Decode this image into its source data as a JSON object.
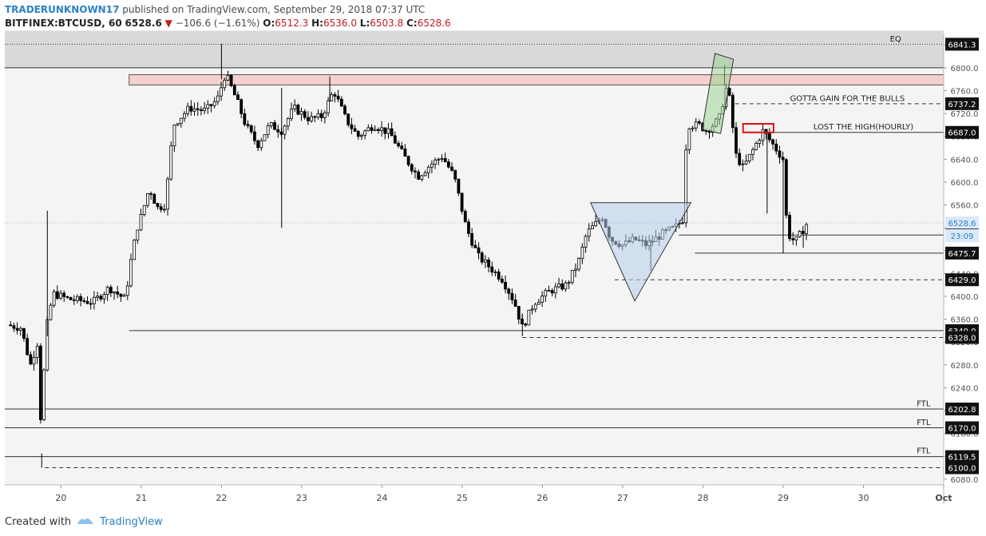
{
  "header": {
    "author": "TRADERUNKNOWN17",
    "published": "published on TradingView.com, September 29, 2018 07:37 UTC",
    "symbol": "BITFINEX:BTCUSD, 60",
    "last": "6528.6",
    "change": "−106.6 (−1.61%)",
    "o_label": "O:",
    "o_value": "6512.3",
    "h_label": "H:",
    "h_value": "6536.0",
    "l_label": "L:",
    "l_value": "6503.8",
    "c_label": "C:",
    "c_value": "6528.6"
  },
  "footer": {
    "created_with": "Created with",
    "brand": "TradingView"
  },
  "colors": {
    "up": "#ffffff",
    "down": "#000000",
    "accent": "#2c81c8",
    "down_text": "#c21a1a"
  },
  "chart_data": {
    "type": "candlestick",
    "ylim": [
      6070,
      6860
    ],
    "xlim": [
      19.3,
      31.0
    ],
    "y_ticks": [
      6080,
      6120,
      6160,
      6200,
      6240,
      6280,
      6320,
      6360,
      6400,
      6440,
      6480,
      6520,
      6560,
      6600,
      6640,
      6680,
      6720,
      6760,
      6800,
      6840
    ],
    "x_ticks": [
      {
        "x": 20,
        "label": "20"
      },
      {
        "x": 21,
        "label": "21"
      },
      {
        "x": 22,
        "label": "22"
      },
      {
        "x": 23,
        "label": "23"
      },
      {
        "x": 24,
        "label": "24"
      },
      {
        "x": 25,
        "label": "25"
      },
      {
        "x": 26,
        "label": "26"
      },
      {
        "x": 27,
        "label": "27"
      },
      {
        "x": 28,
        "label": "28"
      },
      {
        "x": 29,
        "label": "29"
      },
      {
        "x": 30,
        "label": "30"
      },
      {
        "x": 31,
        "label": "Oct"
      }
    ],
    "price_path": [
      [
        19.33,
        6350
      ],
      [
        19.5,
        6345
      ],
      [
        19.62,
        6280
      ],
      [
        19.72,
        6325
      ],
      [
        19.76,
        6120
      ],
      [
        19.8,
        6330
      ],
      [
        19.9,
        6405
      ],
      [
        20.1,
        6395
      ],
      [
        20.4,
        6390
      ],
      [
        20.6,
        6415
      ],
      [
        20.8,
        6395
      ],
      [
        20.88,
        6470
      ],
      [
        20.95,
        6520
      ],
      [
        21.0,
        6540
      ],
      [
        21.1,
        6590
      ],
      [
        21.2,
        6555
      ],
      [
        21.3,
        6560
      ],
      [
        21.4,
        6700
      ],
      [
        21.6,
        6730
      ],
      [
        21.8,
        6725
      ],
      [
        21.95,
        6745
      ],
      [
        22.05,
        6790
      ],
      [
        22.2,
        6740
      ],
      [
        22.3,
        6700
      ],
      [
        22.45,
        6665
      ],
      [
        22.6,
        6700
      ],
      [
        22.75,
        6690
      ],
      [
        22.9,
        6730
      ],
      [
        23.1,
        6710
      ],
      [
        23.25,
        6715
      ],
      [
        23.4,
        6760
      ],
      [
        23.55,
        6710
      ],
      [
        23.7,
        6680
      ],
      [
        23.9,
        6700
      ],
      [
        24.1,
        6685
      ],
      [
        24.3,
        6640
      ],
      [
        24.45,
        6610
      ],
      [
        24.6,
        6630
      ],
      [
        24.75,
        6645
      ],
      [
        24.9,
        6610
      ],
      [
        25.05,
        6520
      ],
      [
        25.2,
        6470
      ],
      [
        25.35,
        6450
      ],
      [
        25.5,
        6430
      ],
      [
        25.65,
        6390
      ],
      [
        25.75,
        6345
      ],
      [
        25.9,
        6390
      ],
      [
        26.1,
        6410
      ],
      [
        26.3,
        6420
      ],
      [
        26.45,
        6460
      ],
      [
        26.55,
        6510
      ],
      [
        26.65,
        6525
      ],
      [
        26.75,
        6540
      ],
      [
        26.85,
        6500
      ],
      [
        27.0,
        6490
      ],
      [
        27.15,
        6500
      ],
      [
        27.3,
        6490
      ],
      [
        27.5,
        6510
      ],
      [
        27.65,
        6520
      ],
      [
        27.75,
        6535
      ],
      [
        27.8,
        6700
      ],
      [
        27.95,
        6700
      ],
      [
        28.05,
        6690
      ],
      [
        28.2,
        6710
      ],
      [
        28.3,
        6770
      ],
      [
        28.35,
        6730
      ],
      [
        28.4,
        6650
      ],
      [
        28.5,
        6625
      ],
      [
        28.6,
        6650
      ],
      [
        28.75,
        6690
      ],
      [
        28.85,
        6670
      ],
      [
        29.0,
        6640
      ],
      [
        29.05,
        6510
      ],
      [
        29.15,
        6495
      ],
      [
        29.3,
        6528.6
      ]
    ],
    "spikes": [
      {
        "x": 19.76,
        "high": 6125,
        "low": 6100
      },
      {
        "x": 19.83,
        "high": 6550,
        "low": 6330
      },
      {
        "x": 22.0,
        "high": 6842,
        "low": 6780
      },
      {
        "x": 22.75,
        "high": 6765,
        "low": 6520
      },
      {
        "x": 23.35,
        "high": 6785,
        "low": 6740
      },
      {
        "x": 25.75,
        "high": 6370,
        "low": 6330
      },
      {
        "x": 27.35,
        "high": 6500,
        "low": 6445
      },
      {
        "x": 28.27,
        "high": 6805,
        "low": 6770
      },
      {
        "x": 28.8,
        "high": 6690,
        "low": 6545
      },
      {
        "x": 29.0,
        "high": 6640,
        "low": 6475
      },
      {
        "x": 29.25,
        "high": 6512,
        "low": 6485
      }
    ],
    "levels": [
      {
        "y": 6841.3,
        "style": "dotted",
        "x0": 19.3,
        "label": "6841.3"
      },
      {
        "y": 6800,
        "style": "solid",
        "x0": 19.3,
        "label": ""
      },
      {
        "y": 6737.2,
        "style": "dashed",
        "x0": 28.4,
        "label": "6737.2"
      },
      {
        "y": 6687.0,
        "style": "solid",
        "x0": 28.6,
        "label": "6687.0"
      },
      {
        "y": 6528.6,
        "style": "dotted-blue",
        "x0": 19.3,
        "label": "6528.6"
      },
      {
        "y": 6507.3,
        "style": "solid",
        "x0": 27.7,
        "label": "6507.3"
      },
      {
        "y": 6475.7,
        "style": "solid",
        "x0": 27.9,
        "label": "6475.7"
      },
      {
        "y": 6429.0,
        "style": "dashed",
        "x0": 26.9,
        "label": "6429.0"
      },
      {
        "y": 6340.0,
        "style": "solid",
        "x0": 20.85,
        "label": "6340.0"
      },
      {
        "y": 6328.0,
        "style": "dashed",
        "x0": 25.75,
        "label": "6328.0"
      },
      {
        "y": 6202.8,
        "style": "solid",
        "x0": 19.3,
        "label": "6202.8"
      },
      {
        "y": 6170.0,
        "style": "solid",
        "x0": 19.3,
        "label": "6170.0"
      },
      {
        "y": 6119.5,
        "style": "solid",
        "x0": 19.3,
        "label": "6119.5"
      },
      {
        "y": 6100.0,
        "style": "dashed",
        "x0": 19.8,
        "label": "6100.0"
      }
    ],
    "countdown": "23:09",
    "annotations": [
      {
        "text": "EQ",
        "x": 30.4,
        "y": 6846
      },
      {
        "text": "GOTTA GAIN FOR THE BULLS",
        "x": 29.8,
        "y": 6742
      },
      {
        "text": "LOST THE HIGH(HOURLY)",
        "x": 30.0,
        "y": 6692
      },
      {
        "text": "FTL",
        "x": 30.75,
        "y": 6208
      },
      {
        "text": "FTL",
        "x": 30.75,
        "y": 6175
      },
      {
        "text": "FTL",
        "x": 30.75,
        "y": 6125
      }
    ],
    "eq_zone": {
      "y0": 6800,
      "y1": 6865
    },
    "resistance_zone": {
      "x0": 20.85,
      "x1": 31.0,
      "y0": 6770,
      "y1": 6788
    },
    "triangle": [
      [
        26.6,
        6564
      ],
      [
        27.85,
        6564
      ],
      [
        27.15,
        6392
      ]
    ],
    "green_box": [
      [
        28.15,
        6825
      ],
      [
        28.38,
        6815
      ],
      [
        28.22,
        6685
      ],
      [
        27.99,
        6692
      ]
    ],
    "red_box": {
      "x0": 28.5,
      "x1": 28.88,
      "y0": 6687,
      "y1": 6702
    }
  }
}
